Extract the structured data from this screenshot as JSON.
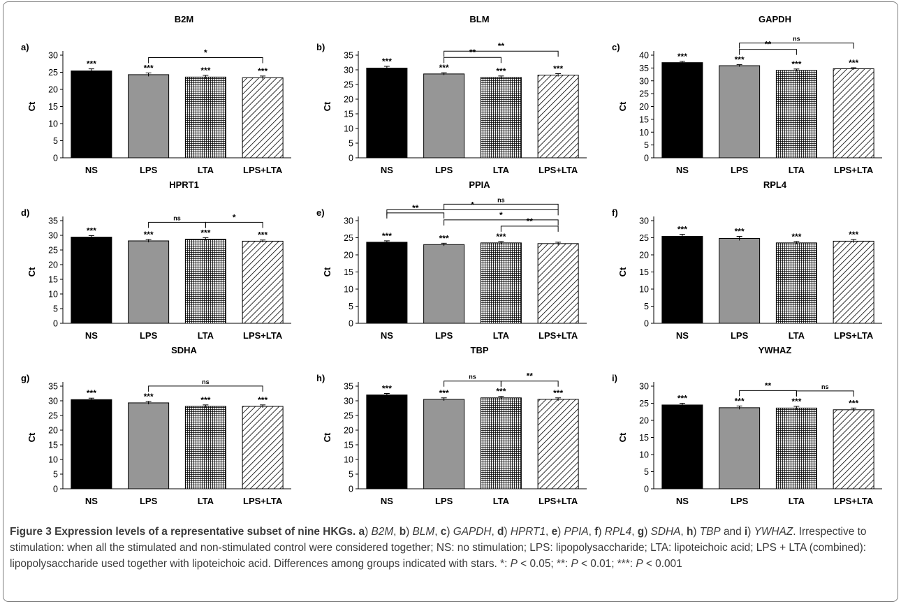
{
  "caption": {
    "figure_label": "Figure 3",
    "title": "Expression levels of a representative subset of nine HKGs",
    "panel_genes": [
      {
        "letter": "a",
        "gene": "B2M"
      },
      {
        "letter": "b",
        "gene": "BLM"
      },
      {
        "letter": "c",
        "gene": "GAPDH"
      },
      {
        "letter": "d",
        "gene": "HPRT1"
      },
      {
        "letter": "e",
        "gene": "PPIA"
      },
      {
        "letter": "f",
        "gene": "RPL4"
      },
      {
        "letter": "g",
        "gene": "SDHA"
      },
      {
        "letter": "h",
        "gene": "TBP"
      },
      {
        "letter": "i",
        "gene": "YWHAZ"
      }
    ],
    "body": "Irrespective to stimulation: when all the stimulated and non-stimulated control were considered together; NS: no stimulation; LPS: lipopolysaccharide; LTA: lipoteichoic acid; LPS + LTA (combined): lipopolysaccharide used together with lipoteichoic acid. Differences among groups indicated with stars. *: ",
    "p_symbol": "P",
    "thresholds": [
      " < 0.05; **: ",
      " < 0.01; ***: ",
      " < 0.001"
    ]
  },
  "colors": {
    "ns_bar": "#000000",
    "lps_bar": "#969696",
    "pattern_ink": "#000000",
    "caption_text": "#3a3a3a"
  },
  "chart_data": [
    {
      "panel": "a)",
      "title": "B2M",
      "type": "bar",
      "categories": [
        "NS",
        "LPS",
        "LTA",
        "LPS+LTA"
      ],
      "values": [
        25.4,
        24.3,
        23.6,
        23.4
      ],
      "errors": [
        0.6,
        0.5,
        0.5,
        0.5
      ],
      "value_labels": [
        "***",
        "***",
        "***",
        "***"
      ],
      "ylabel": "Ct",
      "ylim": [
        0,
        30
      ],
      "yticks": [
        0,
        5,
        10,
        15,
        20,
        25,
        30
      ],
      "brackets": [
        {
          "from": 1,
          "to": 3,
          "label": "*",
          "level": 0
        }
      ]
    },
    {
      "panel": "b)",
      "title": "BLM",
      "type": "bar",
      "categories": [
        "NS",
        "LPS",
        "LTA",
        "LPS+LTA"
      ],
      "values": [
        30.6,
        28.6,
        27.4,
        28.2
      ],
      "errors": [
        0.6,
        0.4,
        0.5,
        0.5
      ],
      "value_labels": [
        "***",
        "***",
        "***",
        "***"
      ],
      "ylabel": "Ct",
      "ylim": [
        0,
        35
      ],
      "yticks": [
        0,
        5,
        10,
        15,
        20,
        25,
        30,
        35
      ],
      "brackets": [
        {
          "from": 1,
          "to": 2,
          "label": "**",
          "level": 0
        },
        {
          "from": 1,
          "to": 3,
          "label": "**",
          "level": 1
        }
      ]
    },
    {
      "panel": "c)",
      "title": "GAPDH",
      "type": "bar",
      "categories": [
        "NS",
        "LPS",
        "LTA",
        "LPS+LTA"
      ],
      "values": [
        37.1,
        35.9,
        34.1,
        34.7
      ],
      "errors": [
        0.5,
        0.4,
        0.5,
        0.4
      ],
      "value_labels": [
        "***",
        "***",
        "***",
        "***"
      ],
      "ylabel": "Ct",
      "ylim": [
        0,
        40
      ],
      "yticks": [
        0,
        5,
        10,
        15,
        20,
        25,
        30,
        35,
        40
      ],
      "brackets": [
        {
          "from": 1,
          "to": 2,
          "label": "**",
          "level": 0
        },
        {
          "from": 1,
          "to": 3,
          "label": "ns",
          "level": 1
        }
      ]
    },
    {
      "panel": "d)",
      "title": "HPRT1",
      "type": "bar",
      "categories": [
        "NS",
        "LPS",
        "LTA",
        "LPS+LTA"
      ],
      "values": [
        29.4,
        28.1,
        28.7,
        28.0
      ],
      "errors": [
        0.5,
        0.5,
        0.5,
        0.4
      ],
      "value_labels": [
        "***",
        "***",
        "***",
        "***"
      ],
      "ylabel": "Ct",
      "ylim": [
        0,
        35
      ],
      "yticks": [
        0,
        5,
        10,
        15,
        20,
        25,
        30,
        35
      ],
      "brackets": [
        {
          "from": 1,
          "to": 2,
          "label": "ns",
          "level": 0
        },
        {
          "from": 2,
          "to": 3,
          "label": "*",
          "level": 0
        }
      ]
    },
    {
      "panel": "e)",
      "title": "PPIA",
      "type": "bar",
      "categories": [
        "NS",
        "LPS",
        "LTA",
        "LPS+LTA"
      ],
      "values": [
        23.7,
        23.0,
        23.5,
        23.3
      ],
      "errors": [
        0.4,
        0.4,
        0.4,
        0.4
      ],
      "value_labels": [
        "***",
        "***",
        "***",
        ""
      ],
      "ylabel": "Ct",
      "ylim": [
        0,
        30
      ],
      "yticks": [
        0,
        5,
        10,
        15,
        20,
        25,
        30
      ],
      "brackets": [
        {
          "from": 2,
          "to": 3,
          "label": "**",
          "level": 0
        },
        {
          "from": 1,
          "to": 3,
          "label": "*",
          "level": 1
        },
        {
          "from": 0,
          "to": 1,
          "label": "**",
          "level": 2
        },
        {
          "from": 0,
          "to": 3,
          "label": "*",
          "level": 2.5
        },
        {
          "from": 1,
          "to": 3,
          "label": "ns",
          "level": 3.5
        }
      ]
    },
    {
      "panel": "f)",
      "title": "RPL4",
      "type": "bar",
      "categories": [
        "NS",
        "LPS",
        "LTA",
        "LPS+LTA"
      ],
      "values": [
        25.4,
        24.8,
        23.5,
        24.0
      ],
      "errors": [
        0.6,
        0.6,
        0.4,
        0.5
      ],
      "value_labels": [
        "***",
        "***",
        "***",
        "***"
      ],
      "ylabel": "Ct",
      "ylim": [
        0,
        30
      ],
      "yticks": [
        0,
        5,
        10,
        15,
        20,
        25,
        30
      ],
      "brackets": []
    },
    {
      "panel": "g)",
      "title": "SDHA",
      "type": "bar",
      "categories": [
        "NS",
        "LPS",
        "LTA",
        "LPS+LTA"
      ],
      "values": [
        30.4,
        29.3,
        28.1,
        28.1
      ],
      "errors": [
        0.5,
        0.5,
        0.5,
        0.5
      ],
      "value_labels": [
        "***",
        "***",
        "***",
        "***"
      ],
      "ylabel": "Ct",
      "ylim": [
        0,
        35
      ],
      "yticks": [
        0,
        5,
        10,
        15,
        20,
        25,
        30,
        35
      ],
      "brackets": [
        {
          "from": 1,
          "to": 3,
          "label": "ns",
          "level": 0
        }
      ]
    },
    {
      "panel": "h)",
      "title": "TBP",
      "type": "bar",
      "categories": [
        "NS",
        "LPS",
        "LTA",
        "LPS+LTA"
      ],
      "values": [
        32.0,
        30.5,
        31.0,
        30.5
      ],
      "errors": [
        0.5,
        0.5,
        0.5,
        0.5
      ],
      "value_labels": [
        "***",
        "***",
        "***",
        "***"
      ],
      "ylabel": "Ct",
      "ylim": [
        0,
        35
      ],
      "yticks": [
        0,
        5,
        10,
        15,
        20,
        25,
        30,
        35
      ],
      "brackets": [
        {
          "from": 1,
          "to": 2,
          "label": "ns",
          "level": 0
        },
        {
          "from": 2,
          "to": 3,
          "label": "**",
          "level": 0
        }
      ]
    },
    {
      "panel": "i)",
      "title": "YWHAZ",
      "type": "bar",
      "categories": [
        "NS",
        "LPS",
        "LTA",
        "LPS+LTA"
      ],
      "values": [
        24.5,
        23.7,
        23.6,
        23.1
      ],
      "errors": [
        0.5,
        0.5,
        0.5,
        0.5
      ],
      "value_labels": [
        "***",
        "***",
        "***",
        "***"
      ],
      "ylabel": "Ct",
      "ylim": [
        0,
        30
      ],
      "yticks": [
        0,
        5,
        10,
        15,
        20,
        25,
        30
      ],
      "brackets": [
        {
          "from": 1,
          "to": 2,
          "label": "**",
          "level": 0
        },
        {
          "from": 2,
          "to": 3,
          "label": "ns",
          "level": 0
        }
      ]
    }
  ]
}
